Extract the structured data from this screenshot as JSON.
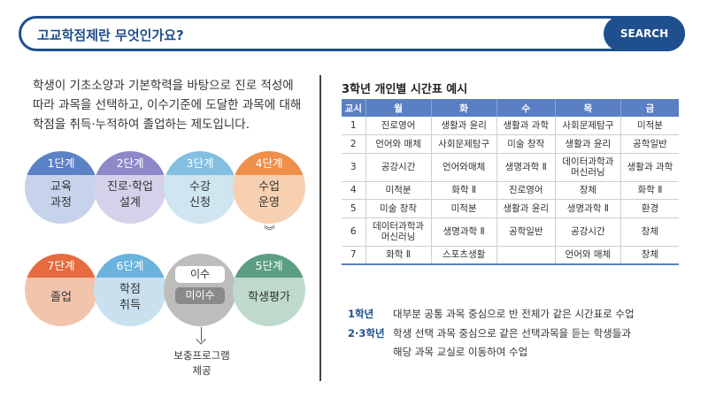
{
  "search": {
    "query": "고교학점제란 무엇인가요?",
    "button_label": "SEARCH"
  },
  "intro": "학생이 기초소양과 기본학력을 바탕으로 진로 적성에 따라 과목을 선택하고, 이수기준에 도달한 과목에 대해 학점을 취득·누적하여 졸업하는 제도입니다.",
  "steps": [
    {
      "label": "1단계",
      "text": "교육\n과정"
    },
    {
      "label": "2단계",
      "text": "진로·학업\n설계"
    },
    {
      "label": "3단계",
      "text": "수강\n신청"
    },
    {
      "label": "4단계",
      "text": "수업\n운영"
    },
    {
      "label": "5단계",
      "text": "학생평가"
    },
    {
      "label": "6단계",
      "text": "학점\n취득"
    },
    {
      "label": "7단계",
      "text": "졸업"
    }
  ],
  "decision": {
    "pass": "이수",
    "fail": "미이수"
  },
  "supplement": "보충프로그램\n제공",
  "chevron": "︾",
  "timetable": {
    "title": "3학년 개인별 시간표 예시",
    "headers": [
      "교시",
      "월",
      "화",
      "수",
      "목",
      "금"
    ],
    "rows": [
      [
        "1",
        "진로영어",
        "생활과 윤리",
        "생활과 과학",
        "사회문제탐구",
        "미적분"
      ],
      [
        "2",
        "언어와 매체",
        "사회문제탐구",
        "미술 창작",
        "생활과 윤리",
        "공학일반"
      ],
      [
        "3",
        "공강시간",
        "언어와매체",
        "생명과학 Ⅱ",
        "데이터과학과\n머신러닝",
        "생활과 과학"
      ],
      [
        "4",
        "미적분",
        "화학 Ⅱ",
        "진로영어",
        "창체",
        "화학 Ⅱ"
      ],
      [
        "5",
        "미술 창작",
        "미적분",
        "생활과 윤리",
        "생명과학 Ⅱ",
        "환경"
      ],
      [
        "6",
        "데이터과학과\n머신러닝",
        "생명과학 Ⅱ",
        "공학일반",
        "공강시간",
        "창체"
      ],
      [
        "7",
        "화학 Ⅱ",
        "스포츠생활",
        "",
        "언어와 매체",
        "창체"
      ]
    ]
  },
  "notes": {
    "grade1_label": "1학년",
    "grade1_text": "대부분 공통 과목 중심으로 반 전체가 같은 시간표로 수업",
    "grade23_label": "2·3학년",
    "grade23_text": "학생 선택 과목 중심으로 같은 선택과목을 듣는 학생들과",
    "grade23_text2": "해당 과목 교실로 이동하여 수업"
  },
  "colors": {
    "brand": "#1f4f8e",
    "table_header": "#5b7fc4"
  }
}
